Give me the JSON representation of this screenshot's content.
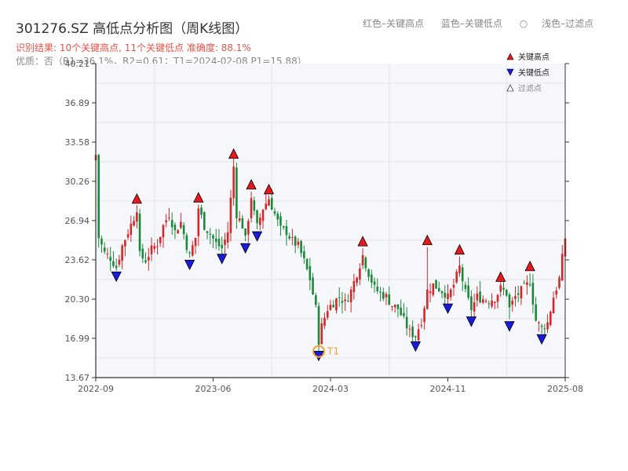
{
  "header": {
    "title": "301276.SZ 高低点分析图（周K线图）",
    "result_text": "识别结果: 10个关键高点, 11个关键低点  准确度: 88.1%",
    "quality_text": "优质：否（R1=36.1%，R2=0.61；T1=2024-02-08 P1=15.88）",
    "top_legend": {
      "red": "红色–关键高点",
      "blue": "蓝色–关键低点",
      "light": "浅色–过滤点"
    }
  },
  "colors": {
    "up": "#d62728",
    "down": "#1a8a3a",
    "high_marker": "#e8191c",
    "low_marker": "#1a1adf",
    "t1_marker": "#f0a030",
    "plot_bg": "#f5f7fa",
    "grid": "#e2e6ea"
  },
  "chart_data": {
    "type": "candlestick",
    "ylim": [
      13.67,
      40.21
    ],
    "y_ticks": [
      "40.21",
      "36.89",
      "33.58",
      "30.26",
      "26.94",
      "23.62",
      "20.30",
      "16.99",
      "13.67"
    ],
    "x_ticks": [
      {
        "label": "2022-09",
        "week": 0
      },
      {
        "label": "2023-06",
        "week": 40
      },
      {
        "label": "2024-03",
        "week": 80
      },
      {
        "label": "2024-11",
        "week": 120
      },
      {
        "label": "2025-08",
        "week": 160
      }
    ],
    "week_count": 160,
    "legend": [
      {
        "label": "关键高点",
        "kind": "high"
      },
      {
        "label": "关键低点",
        "kind": "low"
      },
      {
        "label": "过滤点",
        "kind": "filtered"
      }
    ],
    "t1_label": "T1",
    "t1": {
      "week": 76,
      "price": 15.88
    },
    "key_highs": [
      {
        "week": 14,
        "price": 28.4
      },
      {
        "week": 35,
        "price": 28.5
      },
      {
        "week": 47,
        "price": 32.2
      },
      {
        "week": 53,
        "price": 29.6
      },
      {
        "week": 59,
        "price": 29.2
      },
      {
        "week": 91,
        "price": 24.8
      },
      {
        "week": 113,
        "price": 24.9
      },
      {
        "week": 124,
        "price": 24.1
      },
      {
        "week": 138,
        "price": 21.8
      },
      {
        "week": 148,
        "price": 22.7
      }
    ],
    "key_lows": [
      {
        "week": 7,
        "price": 22.6
      },
      {
        "week": 32,
        "price": 23.6
      },
      {
        "week": 43,
        "price": 24.1
      },
      {
        "week": 51,
        "price": 25.0
      },
      {
        "week": 55,
        "price": 26.0
      },
      {
        "week": 76,
        "price": 15.9
      },
      {
        "week": 109,
        "price": 16.7
      },
      {
        "week": 120,
        "price": 19.9
      },
      {
        "week": 128,
        "price": 18.8
      },
      {
        "week": 141,
        "price": 18.4
      },
      {
        "week": 152,
        "price": 17.3
      }
    ],
    "close_path": [
      [
        0,
        32.5
      ],
      [
        1,
        25.5
      ],
      [
        3,
        24.2
      ],
      [
        5,
        23.8
      ],
      [
        7,
        23.0
      ],
      [
        9,
        24.8
      ],
      [
        11,
        26.0
      ],
      [
        13,
        27.2
      ],
      [
        14,
        28.0
      ],
      [
        15,
        24.0
      ],
      [
        17,
        23.6
      ],
      [
        19,
        24.5
      ],
      [
        21,
        25.0
      ],
      [
        23,
        26.5
      ],
      [
        25,
        27.5
      ],
      [
        27,
        26.0
      ],
      [
        29,
        26.8
      ],
      [
        31,
        24.8
      ],
      [
        32,
        24.0
      ],
      [
        34,
        25.5
      ],
      [
        35,
        28.0
      ],
      [
        37,
        26.5
      ],
      [
        39,
        25.8
      ],
      [
        41,
        25.0
      ],
      [
        43,
        24.6
      ],
      [
        45,
        26.0
      ],
      [
        47,
        31.5
      ],
      [
        48,
        27.5
      ],
      [
        50,
        26.5
      ],
      [
        51,
        25.3
      ],
      [
        53,
        29.0
      ],
      [
        54,
        27.5
      ],
      [
        55,
        26.4
      ],
      [
        57,
        28.0
      ],
      [
        59,
        28.8
      ],
      [
        61,
        27.5
      ],
      [
        63,
        26.2
      ],
      [
        65,
        26.0
      ],
      [
        67,
        25.2
      ],
      [
        69,
        24.8
      ],
      [
        71,
        23.5
      ],
      [
        73,
        22.0
      ],
      [
        75,
        19.5
      ],
      [
        76,
        16.8
      ],
      [
        77,
        18.0
      ],
      [
        79,
        19.5
      ],
      [
        81,
        20.0
      ],
      [
        83,
        20.5
      ],
      [
        85,
        20.0
      ],
      [
        87,
        21.0
      ],
      [
        89,
        22.5
      ],
      [
        91,
        24.0
      ],
      [
        93,
        22.5
      ],
      [
        95,
        21.2
      ],
      [
        97,
        20.8
      ],
      [
        99,
        20.5
      ],
      [
        101,
        19.8
      ],
      [
        103,
        19.5
      ],
      [
        105,
        18.5
      ],
      [
        107,
        17.5
      ],
      [
        109,
        17.2
      ],
      [
        111,
        18.5
      ],
      [
        113,
        21.0
      ],
      [
        115,
        21.5
      ],
      [
        117,
        21.2
      ],
      [
        119,
        20.8
      ],
      [
        120,
        20.4
      ],
      [
        122,
        21.5
      ],
      [
        124,
        23.0
      ],
      [
        126,
        20.8
      ],
      [
        128,
        19.5
      ],
      [
        130,
        20.5
      ],
      [
        132,
        20.3
      ],
      [
        134,
        20.2
      ],
      [
        136,
        20.4
      ],
      [
        138,
        21.2
      ],
      [
        140,
        20.8
      ],
      [
        141,
        19.5
      ],
      [
        143,
        20.5
      ],
      [
        145,
        21.0
      ],
      [
        147,
        21.5
      ],
      [
        148,
        21.8
      ],
      [
        150,
        18.5
      ],
      [
        152,
        17.8
      ],
      [
        154,
        18.3
      ],
      [
        156,
        20.5
      ],
      [
        158,
        22.0
      ],
      [
        160,
        25.5
      ]
    ]
  }
}
